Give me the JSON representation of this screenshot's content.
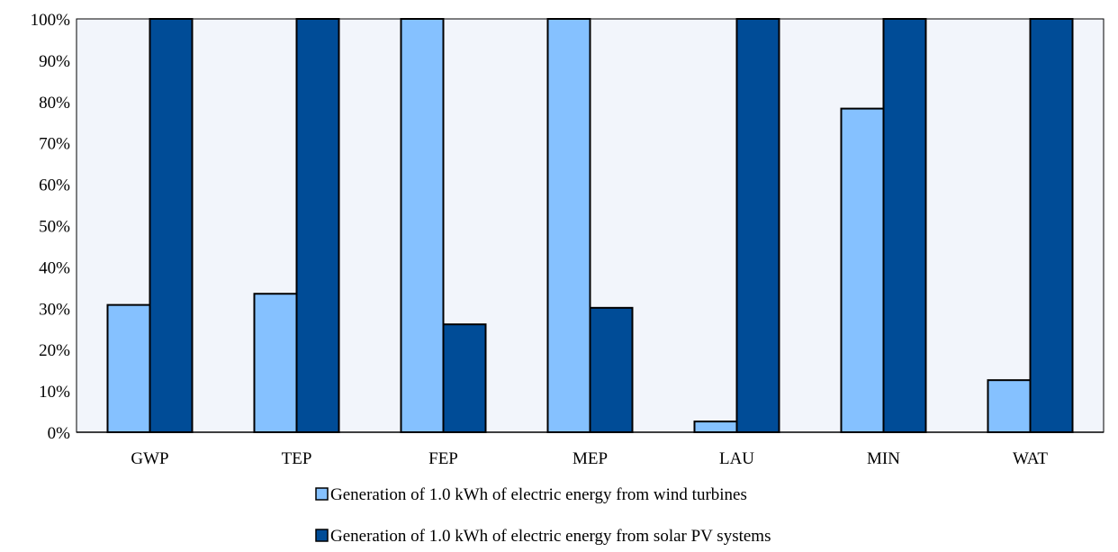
{
  "chart_data": {
    "type": "bar",
    "categories": [
      "GWP",
      "TEP",
      "FEP",
      "MEP",
      "LAU",
      "MIN",
      "WAT"
    ],
    "series": [
      {
        "name": "Generation of 1.0 kWh of electric energy from wind turbines",
        "color": "#85c1ff",
        "values": [
          30.8,
          33.5,
          100,
          100,
          2.6,
          78.3,
          12.6
        ]
      },
      {
        "name": "Generation of 1.0 kWh of electric energy from solar PV systems",
        "color": "#004c97",
        "values": [
          100,
          100,
          26.1,
          30.1,
          100,
          100,
          100
        ]
      }
    ],
    "ylim": [
      0,
      100
    ],
    "yticks": [
      0,
      10,
      20,
      30,
      40,
      50,
      60,
      70,
      80,
      90,
      100
    ],
    "ytick_labels": [
      "0%",
      "10%",
      "20%",
      "30%",
      "40%",
      "50%",
      "60%",
      "70%",
      "80%",
      "90%",
      "100%"
    ],
    "title": "",
    "xlabel": "",
    "ylabel": "",
    "grid": false,
    "plot_background": "#f2f5fb",
    "legend_placement": "bottom-center"
  }
}
